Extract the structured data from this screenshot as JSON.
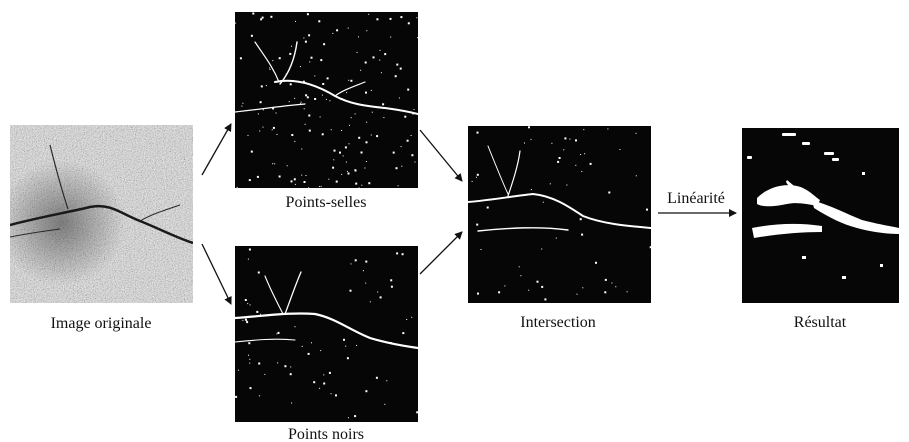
{
  "nodes": {
    "original": {
      "label": "Image originale"
    },
    "saddle": {
      "label": "Points-selles"
    },
    "dark": {
      "label": "Points noirs"
    },
    "intersection": {
      "label": "Intersection"
    },
    "result": {
      "label": "Résultat"
    }
  },
  "edges": [
    {
      "from": "original",
      "to": "saddle",
      "label": ""
    },
    {
      "from": "original",
      "to": "dark",
      "label": ""
    },
    {
      "from": "saddle",
      "to": "intersection",
      "label": ""
    },
    {
      "from": "dark",
      "to": "intersection",
      "label": ""
    },
    {
      "from": "intersection",
      "to": "result",
      "label": "Linéarité"
    }
  ],
  "colors": {
    "background": "#ffffff",
    "panel": "#060606",
    "crack": "#ffffff",
    "arrow": "#111111"
  }
}
